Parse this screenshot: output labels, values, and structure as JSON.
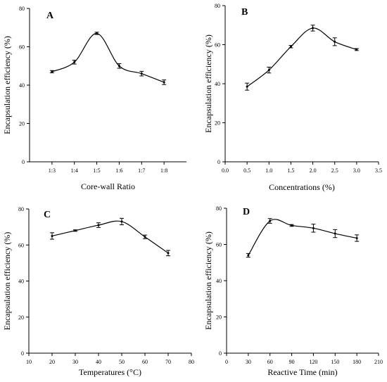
{
  "chart_data": [
    {
      "type": "line",
      "panel_label": "A",
      "xlabel": "Core-wall Ratio",
      "ylabel": "Encapsulation efficiency (%)",
      "x_type": "category",
      "categories": [
        "1:3",
        "1:4",
        "1:5",
        "1:6",
        "1:7",
        "1:8"
      ],
      "values": [
        47,
        52,
        67,
        50,
        46,
        41.5
      ],
      "errors": [
        0.6,
        1.0,
        0.6,
        1.2,
        1.2,
        1.2
      ],
      "ylim": [
        0,
        80
      ],
      "yticks": [
        0,
        20,
        40,
        60,
        80
      ],
      "grid": false
    },
    {
      "type": "line",
      "panel_label": "B",
      "xlabel": "Concentrations (%)",
      "ylabel": "Encapsulation efficiency (%)",
      "x_type": "numeric",
      "x": [
        0.5,
        1.0,
        1.5,
        2.0,
        2.5,
        3.0
      ],
      "values": [
        38.5,
        47,
        59,
        68.5,
        61.5,
        57.5
      ],
      "errors": [
        1.8,
        1.5,
        0.6,
        1.5,
        2.0,
        0.5
      ],
      "xlim": [
        0,
        3.5
      ],
      "xticks": [
        "0.0",
        "0.5",
        "1.0",
        "1.5",
        "2.0",
        "2.5",
        "3.0",
        "3.5"
      ],
      "ylim": [
        0,
        80
      ],
      "yticks": [
        0,
        20,
        40,
        60,
        80
      ],
      "grid": false
    },
    {
      "type": "line",
      "panel_label": "C",
      "xlabel": "Temperatures (°C)",
      "ylabel": "Encapsulation efficiency (%)",
      "x_type": "numeric",
      "x": [
        20,
        30,
        40,
        50,
        60,
        70
      ],
      "values": [
        65,
        68,
        71,
        73,
        64.5,
        55.5
      ],
      "errors": [
        1.8,
        0.4,
        1.3,
        1.8,
        1.0,
        1.5
      ],
      "xlim": [
        10,
        80
      ],
      "xticks": [
        "10",
        "20",
        "30",
        "40",
        "50",
        "60",
        "70",
        "80"
      ],
      "ylim": [
        0,
        80
      ],
      "yticks": [
        0,
        20,
        40,
        60,
        80
      ],
      "grid": false
    },
    {
      "type": "line",
      "panel_label": "D",
      "xlabel": "Reactive Time (min)",
      "ylabel": "Encapsulation efficiency (%)",
      "x_type": "numeric",
      "x": [
        30,
        60,
        90,
        120,
        150,
        180
      ],
      "values": [
        54,
        73,
        70.5,
        69,
        66,
        63.5
      ],
      "errors": [
        1.0,
        1.3,
        0.5,
        2.2,
        2.2,
        1.8
      ],
      "xlim": [
        0,
        210
      ],
      "xticks": [
        "0",
        "30",
        "60",
        "90",
        "120",
        "150",
        "180",
        "210"
      ],
      "ylim": [
        0,
        80
      ],
      "yticks": [
        0,
        20,
        40,
        60,
        80
      ],
      "grid": false
    }
  ]
}
